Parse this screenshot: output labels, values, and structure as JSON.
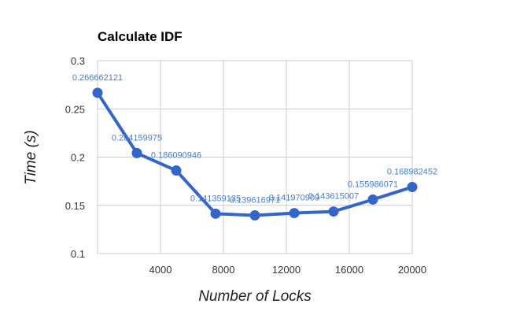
{
  "chart_data": {
    "type": "line",
    "title": "Calculate IDF",
    "xlabel": "Number of Locks",
    "ylabel": "Time (s)",
    "xlim": [
      0,
      20000
    ],
    "ylim": [
      0.1,
      0.3
    ],
    "x_ticks": [
      4000,
      8000,
      12000,
      16000,
      20000
    ],
    "x_tick_labels": [
      "4000",
      "8000",
      "12000",
      "16000",
      "20000"
    ],
    "y_ticks": [
      0.1,
      0.15,
      0.2,
      0.25,
      0.3
    ],
    "y_tick_labels": [
      "0.1",
      "0.15",
      "0.2",
      "0.25",
      "0.3"
    ],
    "grid": true,
    "legend": "none",
    "series": [
      {
        "color": "#3366cc",
        "label_color": "#4a7bd0",
        "x": [
          0,
          2500,
          5000,
          7500,
          10000,
          12500,
          15000,
          17500,
          20000
        ],
        "y": [
          0.266662121,
          0.204159975,
          0.186090946,
          0.141359135,
          0.139616971,
          0.141970909,
          0.143615007,
          0.155986071,
          0.168982452
        ],
        "data_labels": [
          "0.266662121",
          "0.204159975",
          "0.186090946",
          "0.141359135",
          "0.139616971",
          "0.141970909",
          "0.143615007",
          "0.155986071",
          "0.168982452"
        ]
      }
    ]
  }
}
